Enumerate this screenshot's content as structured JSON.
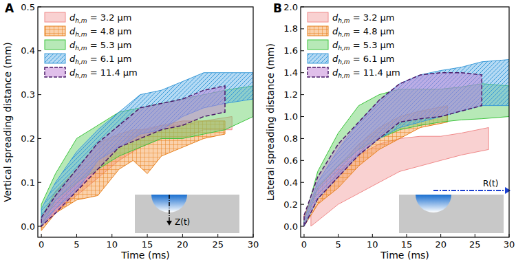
{
  "chart_data": [
    {
      "type": "area",
      "title": "A",
      "x_label": "Time (ms)",
      "y_label": "Vertical spreading distance (mm)",
      "xlim": [
        -0.5,
        30
      ],
      "xticks": [
        0,
        5,
        10,
        15,
        20,
        25,
        30
      ],
      "ylim": [
        -0.025,
        0.5
      ],
      "yticks": [
        {
          "value": 0,
          "label": "0.0"
        },
        0.1,
        0.2,
        0.3,
        0.4,
        0.5
      ],
      "legend": "upper left",
      "annotations": [
        "Z(t)"
      ],
      "series": [
        {
          "name": "dh,m = 3.2 μm",
          "color": "#f4a3a3",
          "x": [
            0,
            2,
            5,
            8,
            11,
            14,
            17,
            20,
            23,
            27
          ],
          "values": [
            0.02,
            0.06,
            0.1,
            0.15,
            0.19,
            0.22,
            0.23,
            0.23,
            0.24,
            0.25
          ],
          "lower": [
            0,
            0.03,
            0.07,
            0.11,
            0.15,
            0.18,
            0.2,
            0.2,
            0.22,
            0.22
          ]
        },
        {
          "name": "dh,m = 4.8 μm",
          "color": "#f59a45",
          "x": [
            0,
            2,
            5,
            8,
            11,
            13,
            15,
            17,
            20,
            23,
            26
          ],
          "values": [
            0.02,
            0.08,
            0.13,
            0.19,
            0.21,
            0.22,
            0.22,
            0.23,
            0.24,
            0.24,
            0.24
          ],
          "lower": [
            -0.01,
            0.03,
            0.06,
            0.07,
            0.13,
            0.15,
            0.12,
            0.16,
            0.18,
            0.2,
            0.21
          ]
        },
        {
          "name": "dh,m = 5.3 μm",
          "color": "#6fd46f",
          "x": [
            0,
            2,
            5,
            8,
            11,
            14,
            17,
            20,
            23,
            26,
            30
          ],
          "values": [
            0.05,
            0.12,
            0.2,
            0.23,
            0.26,
            0.27,
            0.28,
            0.29,
            0.3,
            0.31,
            0.32
          ],
          "lower": [
            0,
            0.06,
            0.1,
            0.13,
            0.16,
            0.18,
            0.2,
            0.2,
            0.21,
            0.22,
            0.25
          ]
        },
        {
          "name": "dh,m = 6.1 μm",
          "color": "#5aaee6",
          "x": [
            0,
            2,
            5,
            8,
            11,
            14,
            17,
            20,
            23,
            26,
            30
          ],
          "values": [
            0.04,
            0.1,
            0.17,
            0.22,
            0.26,
            0.3,
            0.31,
            0.33,
            0.35,
            0.35,
            0.35
          ],
          "lower": [
            0,
            0.04,
            0.08,
            0.15,
            0.18,
            0.21,
            0.22,
            0.25,
            0.27,
            0.28,
            0.29
          ]
        },
        {
          "name": "dh,m = 11.4 μm",
          "color": "#c27fd6",
          "line_style": "dashed",
          "x": [
            0,
            2,
            5,
            8,
            11,
            14,
            17,
            20,
            23,
            26
          ],
          "values": [
            0.02,
            0.07,
            0.13,
            0.19,
            0.23,
            0.27,
            0.28,
            0.29,
            0.31,
            0.32
          ],
          "lower": [
            0,
            0.03,
            0.08,
            0.13,
            0.18,
            0.2,
            0.22,
            0.23,
            0.25,
            0.26
          ]
        }
      ]
    },
    {
      "type": "area",
      "title": "B",
      "x_label": "Time (ms)",
      "y_label": "Lateral spreading distance (mm)",
      "xlim": [
        -0.5,
        30
      ],
      "xticks": [
        0,
        5,
        10,
        15,
        20,
        25,
        30
      ],
      "ylim": [
        -0.1,
        2.0
      ],
      "yticks": [
        {
          "value": 0,
          "label": "0.0"
        },
        0.2,
        0.4,
        0.6,
        0.8,
        {
          "value": 1,
          "label": "1.0"
        },
        1.2,
        1.4,
        1.6,
        1.8,
        {
          "value": 2,
          "label": "2.0"
        }
      ],
      "legend": "upper left",
      "annotations": [
        "R(t)"
      ],
      "series": [
        {
          "name": "dh,m = 3.2 μm",
          "color": "#f4a3a3",
          "x": [
            1,
            3,
            5,
            8,
            11,
            14,
            17,
            20,
            23,
            27
          ],
          "values": [
            0.1,
            0.3,
            0.5,
            0.65,
            0.75,
            0.8,
            0.82,
            0.82,
            0.85,
            0.9
          ],
          "lower": [
            0,
            0.1,
            0.2,
            0.3,
            0.4,
            0.5,
            0.55,
            0.6,
            0.65,
            0.7
          ]
        },
        {
          "name": "dh,m = 4.8 μm",
          "color": "#f59a45",
          "x": [
            0,
            2,
            5,
            8,
            11,
            14,
            17,
            21
          ],
          "values": [
            0.1,
            0.35,
            0.55,
            0.75,
            0.9,
            1.0,
            1.05,
            1.1
          ],
          "lower": [
            0,
            0.2,
            0.35,
            0.55,
            0.7,
            0.8,
            0.9,
            0.95
          ]
        },
        {
          "name": "dh,m = 5.3 μm",
          "color": "#6fd46f",
          "x": [
            0,
            2,
            5,
            8,
            11,
            14,
            17,
            20,
            23,
            26,
            30
          ],
          "values": [
            0.05,
            0.5,
            0.85,
            1.1,
            1.2,
            1.25,
            1.25,
            1.25,
            1.27,
            1.3,
            1.28
          ],
          "lower": [
            0,
            0.35,
            0.55,
            0.7,
            0.8,
            0.88,
            0.92,
            0.95,
            0.97,
            0.98,
            1.0
          ]
        },
        {
          "name": "dh,m = 6.1 μm",
          "color": "#5aaee6",
          "x": [
            0,
            2,
            5,
            8,
            11,
            14,
            17,
            20,
            23,
            26,
            30
          ],
          "values": [
            0.05,
            0.4,
            0.7,
            0.95,
            1.15,
            1.3,
            1.38,
            1.42,
            1.45,
            1.5,
            1.52
          ],
          "lower": [
            0,
            0.25,
            0.45,
            0.65,
            0.8,
            0.9,
            0.95,
            1.0,
            1.05,
            1.1,
            1.1
          ]
        },
        {
          "name": "dh,m = 11.4 μm",
          "color": "#c27fd6",
          "line_style": "dashed",
          "x": [
            0,
            2,
            5,
            8,
            11,
            14,
            17,
            20,
            23,
            26
          ],
          "values": [
            0.1,
            0.45,
            0.75,
            0.95,
            1.15,
            1.3,
            1.38,
            1.4,
            1.4,
            1.38
          ],
          "lower": [
            0,
            0.25,
            0.45,
            0.65,
            0.8,
            0.95,
            0.98,
            1.0,
            1.05,
            1.1
          ]
        }
      ]
    }
  ]
}
